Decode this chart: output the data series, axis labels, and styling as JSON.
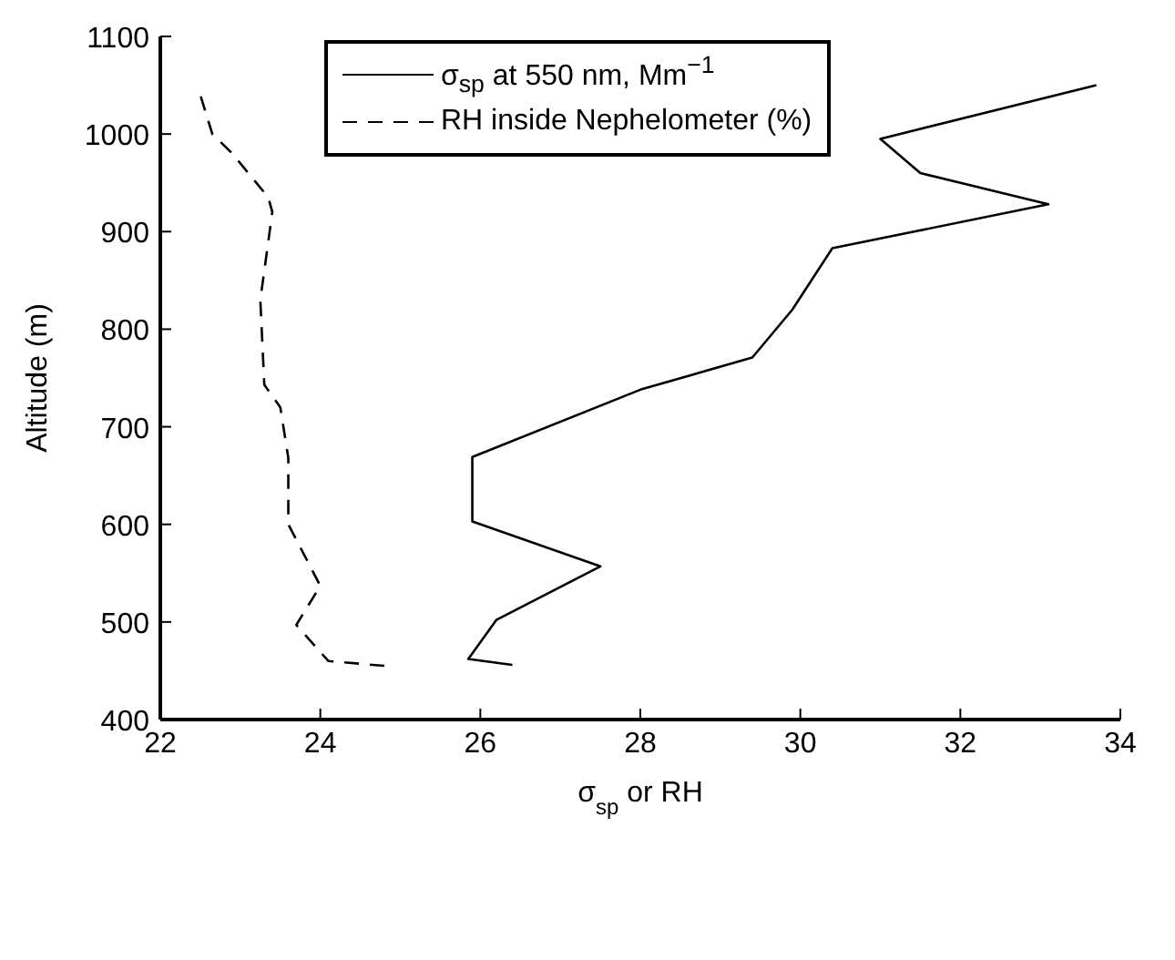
{
  "chart_data": {
    "type": "line",
    "xlabel": "σ$_{sp}$ or RH",
    "ylabel": "Altitude (m)",
    "xlim": [
      22,
      34
    ],
    "xticks": [
      22,
      24,
      26,
      28,
      30,
      32,
      34
    ],
    "ylim": [
      400,
      1100
    ],
    "yticks": [
      400,
      500,
      600,
      700,
      800,
      900,
      1000,
      1100
    ],
    "grid": false,
    "legend": "top",
    "marker": "none",
    "series": [
      {
        "name": "σ$_{sp}$ at 550 nm, Mm$^{−1}$",
        "color": "#000000",
        "line_style": "solid",
        "x": [
          26.4,
          25.85,
          26.2,
          27.5,
          25.9,
          25.9,
          28.0,
          29.4,
          29.9,
          30.4,
          33.1,
          31.5,
          31.0,
          33.7
        ],
        "values": [
          456,
          462,
          502,
          557,
          603,
          669,
          738,
          771,
          820,
          883,
          928,
          960,
          995,
          1050
        ]
      },
      {
        "name": "RH inside Nephelometer (%)",
        "color": "#000000",
        "line_style": "dashed",
        "x": [
          24.8,
          24.1,
          23.7,
          24.0,
          23.6,
          23.6,
          23.5,
          23.3,
          23.25,
          23.4,
          23.35,
          22.9,
          22.65,
          22.5
        ],
        "values": [
          455,
          460,
          497,
          537,
          600,
          668,
          720,
          743,
          830,
          920,
          935,
          980,
          1000,
          1040
        ]
      }
    ]
  }
}
